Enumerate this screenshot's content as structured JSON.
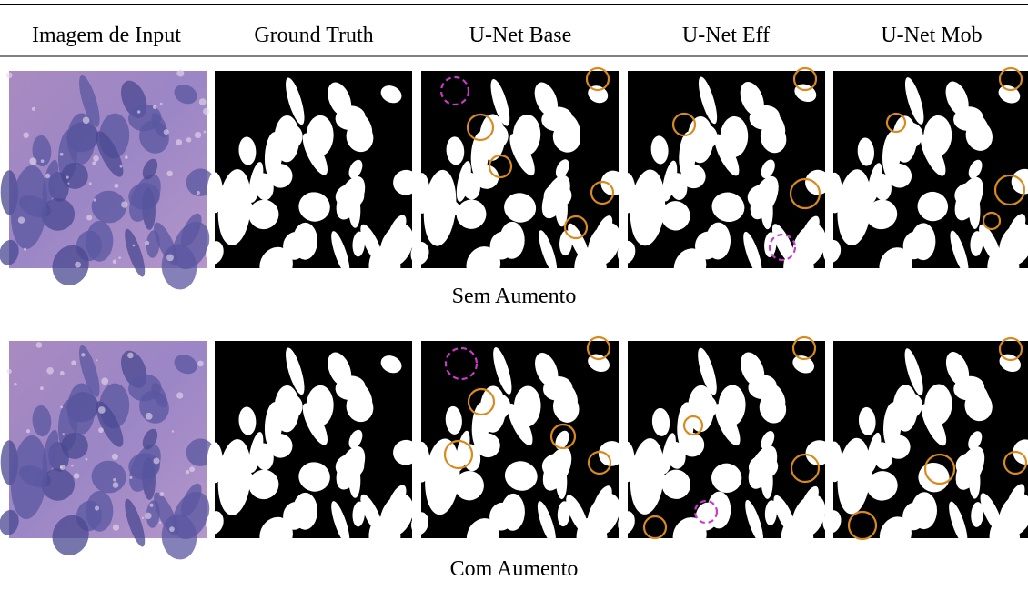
{
  "header": {
    "columns": [
      "Imagem de Input",
      "Ground Truth",
      "U-Net Base",
      "U-Net Eff",
      "U-Net Mob"
    ]
  },
  "rows": [
    {
      "label": "Sem Aumento"
    },
    {
      "label": "Com Aumento"
    }
  ]
}
